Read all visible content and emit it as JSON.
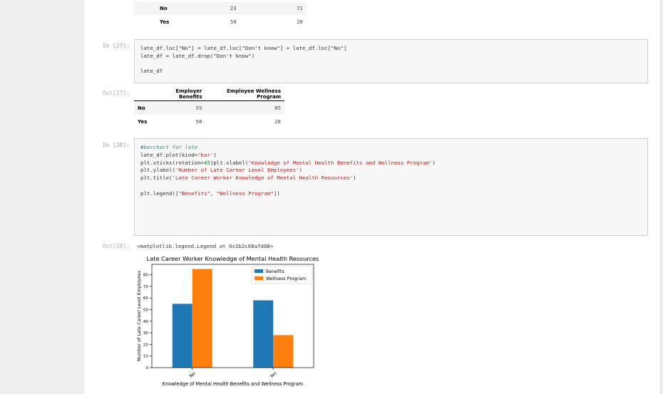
{
  "prev_table": {
    "rows": [
      {
        "label": "No",
        "benefits": "23",
        "wellness": "71"
      },
      {
        "label": "Yes",
        "benefits": "58",
        "wellness": "28"
      }
    ]
  },
  "cell27": {
    "in_prompt": "In [27]:",
    "out_prompt": "Out[27]:",
    "code_line1": "late_df.loc[\"No\"] = late_df.loc[\"Don't know\"] + late_df.loc[\"No\"]",
    "code_line2": "late_df = late_df.drop(\"Don't know\")",
    "code_line3": "late_df",
    "table": {
      "columns": [
        "Employer Benefits",
        "Employee Wellness Program"
      ],
      "rows": [
        {
          "label": "No",
          "benefits": "55",
          "wellness": "85"
        },
        {
          "label": "Yes",
          "benefits": "58",
          "wellness": "28"
        }
      ]
    }
  },
  "cell28": {
    "in_prompt": "In [28]:",
    "out_prompt": "Out[28]:",
    "comment": "#barchart for late",
    "code_plot_prefix": "late_df.plot(kind=",
    "code_plot_arg": "'bar'",
    "code_plot_suffix": ")",
    "code_xticks_prefix": "plt.xticks(rotation=",
    "code_xticks_arg": "45",
    "code_xticks_suffix": ")",
    "code_xlabel_prefix": "plt.xlabel(",
    "code_xlabel_arg": "'Knowledge of Mental Health Benefits and Wellness Program'",
    "code_ylabel_prefix": "plt.ylabel(",
    "code_ylabel_arg": "'Number of Late Career Level Employees'",
    "code_title_prefix": "plt.title(",
    "code_title_arg": "'Late Career Worker Knowledge of Mental Health Resources'",
    "code_legend_prefix": "plt.legend([",
    "code_legend_arg1": "\"Benefits\"",
    "code_legend_sep": ", ",
    "code_legend_arg2": "\"Wellness Program\"",
    "code_legend_suffix": "])",
    "close_paren": ")",
    "output_text": "<matplotlib.legend.Legend at 0x1b2c68a7d08>"
  },
  "chart_data": {
    "type": "bar",
    "title": "Late Career Worker Knowledge of Mental Health Resources",
    "xlabel": "Knowledge of Mental Health Benefits and Wellness Program",
    "ylabel": "Number of Late Career Level Employees",
    "categories": [
      "No",
      "Yes"
    ],
    "series": [
      {
        "name": "Benefits",
        "values": [
          55,
          58
        ],
        "color": "#1f77b4"
      },
      {
        "name": "Wellness Program",
        "values": [
          85,
          28
        ],
        "color": "#ff7f0e"
      }
    ],
    "ylim": [
      0,
      89
    ],
    "yticks": [
      "0",
      "10",
      "20",
      "30",
      "40",
      "50",
      "60",
      "70",
      "80"
    ],
    "legend_position": "top-right",
    "grid": false
  }
}
